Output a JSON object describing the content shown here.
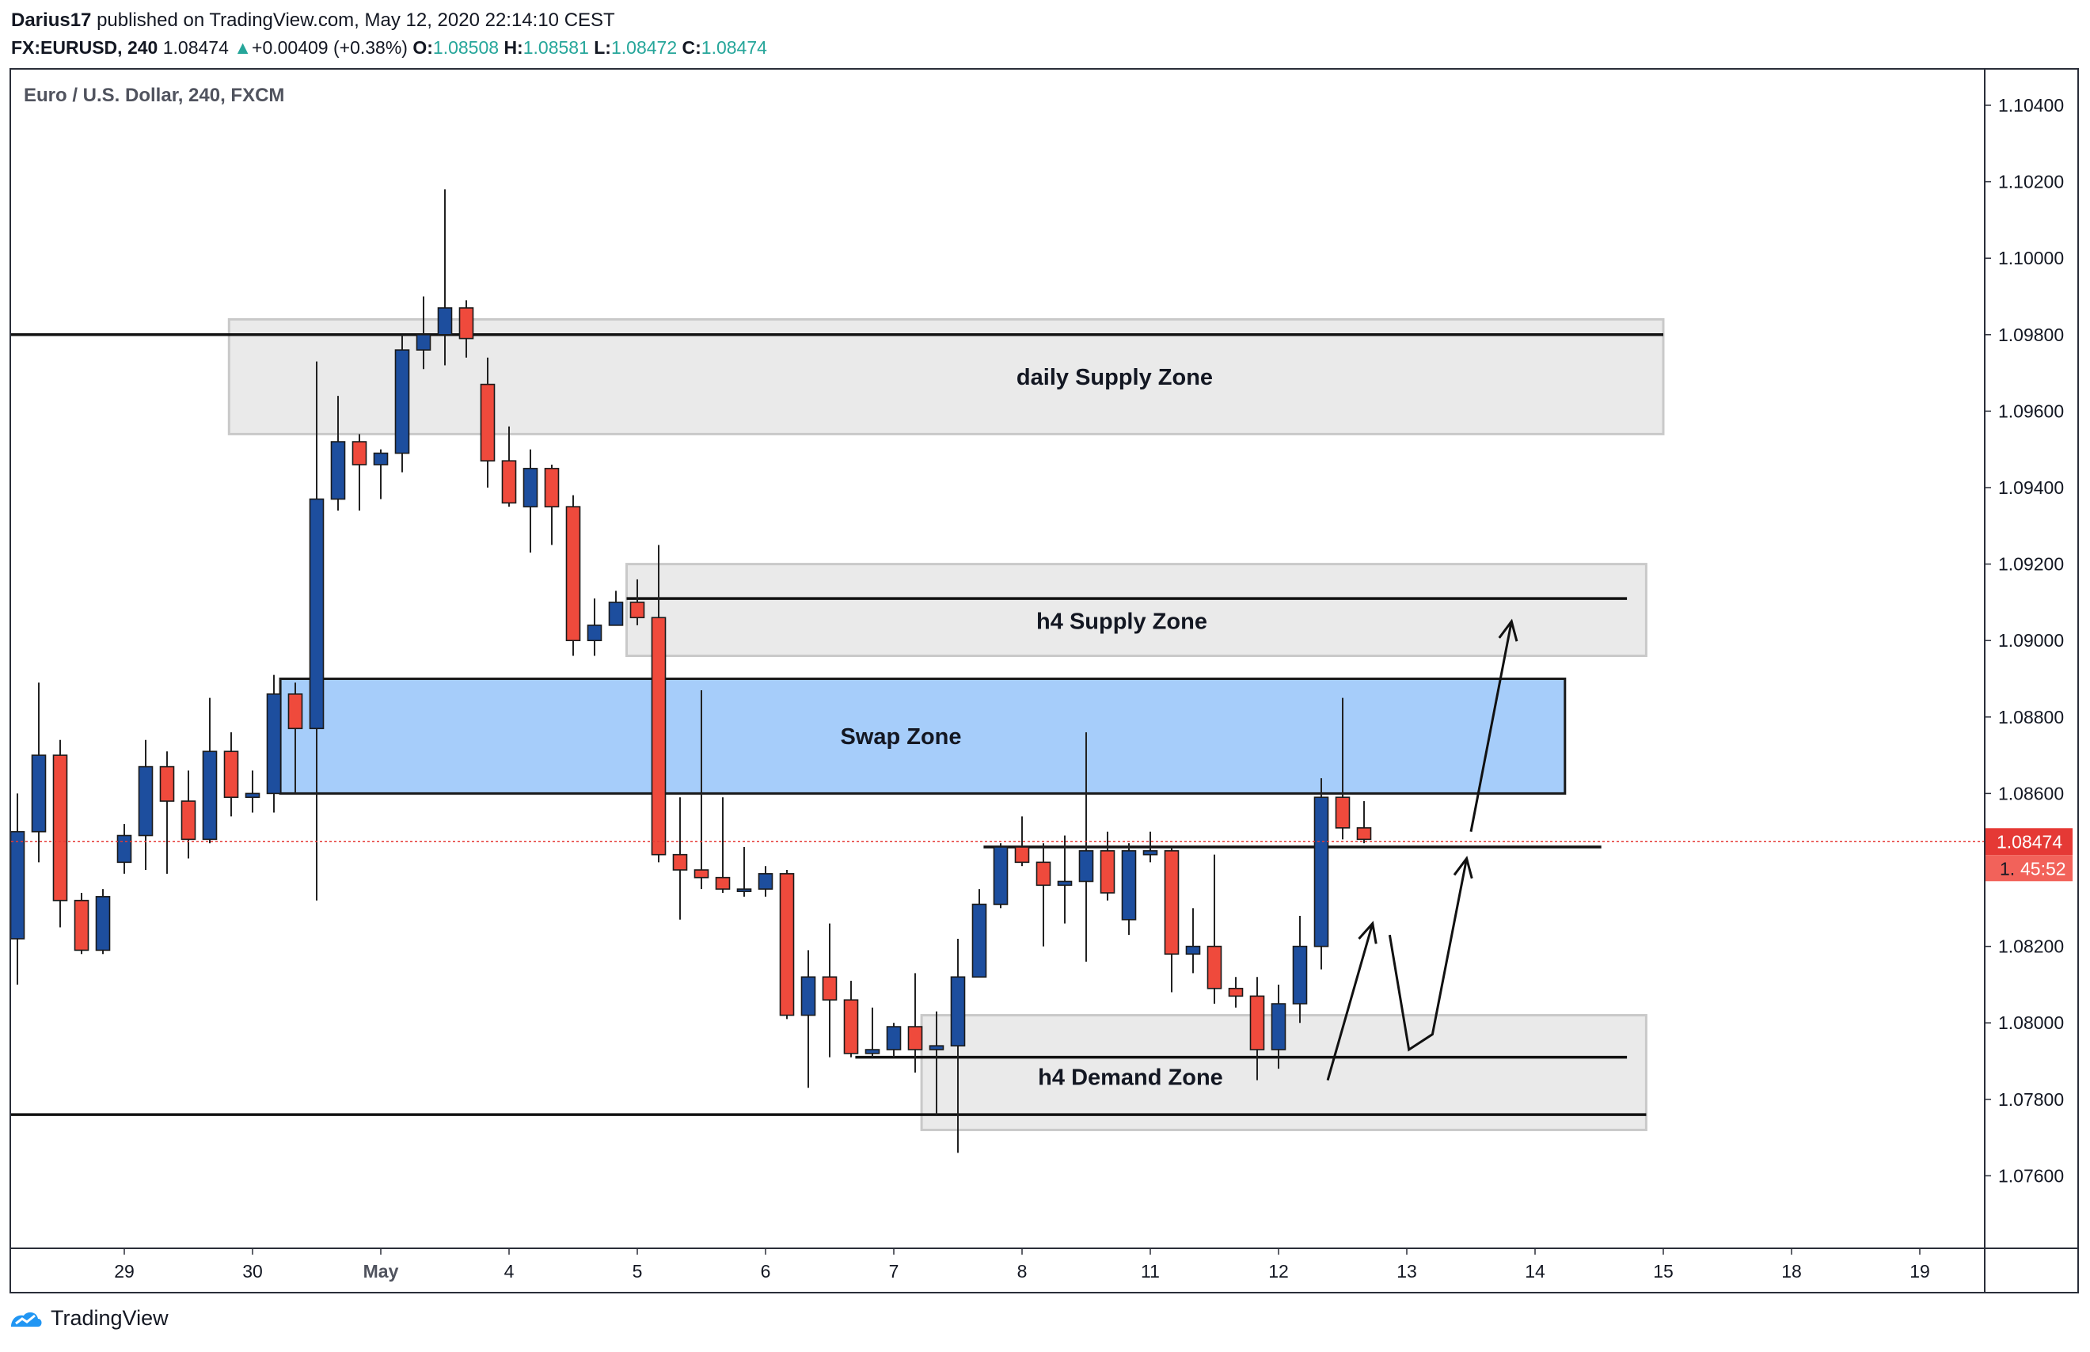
{
  "header": {
    "user": "Darius17",
    "published_text": "published on TradingView.com, May 12, 2020 22:14:10 CEST",
    "symbol": "FX:EURUSD, 240",
    "last": "1.08474",
    "change_arrow": "▲",
    "change": "+0.00409 (+0.38%)",
    "open_label": "O:",
    "open": "1.08508",
    "high_label": "H:",
    "high": "1.08581",
    "low_label": "L:",
    "low": "1.08472",
    "close_label": "C:",
    "close": "1.08474"
  },
  "footer": {
    "brand": "TradingView",
    "logo_icon": "tradingview-logo-icon"
  },
  "chart_data": {
    "type": "candlestick",
    "title": "Euro / U.S. Dollar, 240, FXCM",
    "ylim": [
      1.0745,
      1.105
    ],
    "y_ticks": [
      "1.10400",
      "1.10200",
      "1.10000",
      "1.09800",
      "1.09600",
      "1.09400",
      "1.09200",
      "1.09000",
      "1.08800",
      "1.08600",
      "1.08400",
      "1.08200",
      "1.08000",
      "1.07800",
      "1.07600"
    ],
    "x_ticks": [
      {
        "label": "29",
        "slot": 5
      },
      {
        "label": "30",
        "slot": 11
      },
      {
        "label": "May",
        "slot": 17
      },
      {
        "label": "4",
        "slot": 23
      },
      {
        "label": "5",
        "slot": 29
      },
      {
        "label": "6",
        "slot": 35
      },
      {
        "label": "7",
        "slot": 41
      },
      {
        "label": "8",
        "slot": 47
      },
      {
        "label": "11",
        "slot": 53
      },
      {
        "label": "12",
        "slot": 59
      },
      {
        "label": "13",
        "slot": 65
      },
      {
        "label": "14",
        "slot": 71
      },
      {
        "label": "15",
        "slot": 77
      },
      {
        "label": "18",
        "slot": 83
      },
      {
        "label": "19",
        "slot": 89
      }
    ],
    "current_price_label": "1.08474",
    "countdown_label": "45:52",
    "colors": {
      "up": "#1d4e9e",
      "down": "#ef4a3c",
      "wick": "#222222",
      "price_line": "#e53935",
      "zone": "#e9e9e9",
      "swap": "#a6cdfa"
    },
    "candles": [
      {
        "o": 1.0822,
        "h": 1.086,
        "l": 1.081,
        "c": 1.085
      },
      {
        "o": 1.085,
        "h": 1.0889,
        "l": 1.0842,
        "c": 1.087
      },
      {
        "o": 1.087,
        "h": 1.0874,
        "l": 1.0825,
        "c": 1.0832
      },
      {
        "o": 1.0832,
        "h": 1.0834,
        "l": 1.0818,
        "c": 1.0819
      },
      {
        "o": 1.0819,
        "h": 1.0835,
        "l": 1.0818,
        "c": 1.0833
      },
      {
        "o": 1.0842,
        "h": 1.0852,
        "l": 1.0839,
        "c": 1.0849
      },
      {
        "o": 1.0849,
        "h": 1.0874,
        "l": 1.084,
        "c": 1.0867
      },
      {
        "o": 1.0867,
        "h": 1.0871,
        "l": 1.0839,
        "c": 1.0858
      },
      {
        "o": 1.0858,
        "h": 1.0866,
        "l": 1.0843,
        "c": 1.0848
      },
      {
        "o": 1.0848,
        "h": 1.0885,
        "l": 1.0847,
        "c": 1.0871
      },
      {
        "o": 1.0871,
        "h": 1.0876,
        "l": 1.0854,
        "c": 1.0859
      },
      {
        "o": 1.0859,
        "h": 1.0866,
        "l": 1.0855,
        "c": 1.086
      },
      {
        "o": 1.086,
        "h": 1.0891,
        "l": 1.0855,
        "c": 1.0886
      },
      {
        "o": 1.0886,
        "h": 1.0889,
        "l": 1.086,
        "c": 1.0877
      },
      {
        "o": 1.0877,
        "h": 1.0973,
        "l": 1.0832,
        "c": 1.0937
      },
      {
        "o": 1.0937,
        "h": 1.0964,
        "l": 1.0934,
        "c": 1.0952
      },
      {
        "o": 1.0952,
        "h": 1.0954,
        "l": 1.0934,
        "c": 1.0946
      },
      {
        "o": 1.0946,
        "h": 1.095,
        "l": 1.0937,
        "c": 1.0949
      },
      {
        "o": 1.0949,
        "h": 1.098,
        "l": 1.0944,
        "c": 1.0976
      },
      {
        "o": 1.0976,
        "h": 1.099,
        "l": 1.0971,
        "c": 1.098
      },
      {
        "o": 1.098,
        "h": 1.1018,
        "l": 1.0972,
        "c": 1.0987
      },
      {
        "o": 1.0987,
        "h": 1.0989,
        "l": 1.0974,
        "c": 1.0979
      },
      {
        "o": 1.0967,
        "h": 1.0974,
        "l": 1.094,
        "c": 1.0947
      },
      {
        "o": 1.0947,
        "h": 1.0956,
        "l": 1.0935,
        "c": 1.0936
      },
      {
        "o": 1.0935,
        "h": 1.095,
        "l": 1.0923,
        "c": 1.0945
      },
      {
        "o": 1.0945,
        "h": 1.0946,
        "l": 1.0925,
        "c": 1.0935
      },
      {
        "o": 1.0935,
        "h": 1.0938,
        "l": 1.0896,
        "c": 1.09
      },
      {
        "o": 1.09,
        "h": 1.0911,
        "l": 1.0896,
        "c": 1.0904
      },
      {
        "o": 1.0904,
        "h": 1.0913,
        "l": 1.0904,
        "c": 1.091
      },
      {
        "o": 1.091,
        "h": 1.0916,
        "l": 1.0904,
        "c": 1.0906
      },
      {
        "o": 1.0906,
        "h": 1.0925,
        "l": 1.0842,
        "c": 1.0844
      },
      {
        "o": 1.0844,
        "h": 1.0859,
        "l": 1.0827,
        "c": 1.084
      },
      {
        "o": 1.084,
        "h": 1.0887,
        "l": 1.0835,
        "c": 1.0838
      },
      {
        "o": 1.0838,
        "h": 1.0859,
        "l": 1.0834,
        "c": 1.0835
      },
      {
        "o": 1.0835,
        "h": 1.0846,
        "l": 1.0833,
        "c": 1.0835
      },
      {
        "o": 1.0835,
        "h": 1.0841,
        "l": 1.0833,
        "c": 1.0839
      },
      {
        "o": 1.0839,
        "h": 1.084,
        "l": 1.0801,
        "c": 1.0802
      },
      {
        "o": 1.0802,
        "h": 1.0819,
        "l": 1.0783,
        "c": 1.0812
      },
      {
        "o": 1.0812,
        "h": 1.0826,
        "l": 1.0791,
        "c": 1.0806
      },
      {
        "o": 1.0806,
        "h": 1.0811,
        "l": 1.0791,
        "c": 1.0792
      },
      {
        "o": 1.0792,
        "h": 1.0804,
        "l": 1.0791,
        "c": 1.0793
      },
      {
        "o": 1.0793,
        "h": 1.08,
        "l": 1.0791,
        "c": 1.0799
      },
      {
        "o": 1.0799,
        "h": 1.0813,
        "l": 1.0787,
        "c": 1.0793
      },
      {
        "o": 1.0793,
        "h": 1.0803,
        "l": 1.0776,
        "c": 1.0794
      },
      {
        "o": 1.0794,
        "h": 1.0822,
        "l": 1.0766,
        "c": 1.0812
      },
      {
        "o": 1.0812,
        "h": 1.0835,
        "l": 1.0812,
        "c": 1.0831
      },
      {
        "o": 1.0831,
        "h": 1.0847,
        "l": 1.083,
        "c": 1.0846
      },
      {
        "o": 1.0846,
        "h": 1.0854,
        "l": 1.0841,
        "c": 1.0842
      },
      {
        "o": 1.0842,
        "h": 1.0847,
        "l": 1.082,
        "c": 1.0836
      },
      {
        "o": 1.0836,
        "h": 1.0849,
        "l": 1.0826,
        "c": 1.0837
      },
      {
        "o": 1.0837,
        "h": 1.0876,
        "l": 1.0816,
        "c": 1.0845
      },
      {
        "o": 1.0845,
        "h": 1.085,
        "l": 1.0832,
        "c": 1.0834
      },
      {
        "o": 1.0827,
        "h": 1.0847,
        "l": 1.0823,
        "c": 1.0845
      },
      {
        "o": 1.0844,
        "h": 1.085,
        "l": 1.0842,
        "c": 1.0845
      },
      {
        "o": 1.0845,
        "h": 1.0846,
        "l": 1.0808,
        "c": 1.0818
      },
      {
        "o": 1.0818,
        "h": 1.083,
        "l": 1.0813,
        "c": 1.082
      },
      {
        "o": 1.082,
        "h": 1.0844,
        "l": 1.0805,
        "c": 1.0809
      },
      {
        "o": 1.0809,
        "h": 1.0812,
        "l": 1.0804,
        "c": 1.0807
      },
      {
        "o": 1.0807,
        "h": 1.0812,
        "l": 1.0785,
        "c": 1.0793
      },
      {
        "o": 1.0793,
        "h": 1.081,
        "l": 1.0788,
        "c": 1.0805
      },
      {
        "o": 1.0805,
        "h": 1.0828,
        "l": 1.08,
        "c": 1.082
      },
      {
        "o": 1.082,
        "h": 1.0864,
        "l": 1.0814,
        "c": 1.0859
      },
      {
        "o": 1.0859,
        "h": 1.0885,
        "l": 1.0848,
        "c": 1.0851
      },
      {
        "o": 1.0851,
        "h": 1.0858,
        "l": 1.0847,
        "c": 1.0848
      }
    ],
    "zones": [
      {
        "label": "daily Supply Zone",
        "y_top": 1.0984,
        "y_bottom": 1.0954,
        "slot_start": 9.9,
        "slot_end": 77
      },
      {
        "label": "h4 Supply Zone",
        "y_top": 1.092,
        "y_bottom": 1.0896,
        "slot_start": 28.5,
        "slot_end": 76.2
      },
      {
        "label": "Swap Zone",
        "y_top": 1.089,
        "y_bottom": 1.086,
        "slot_start": 12.3,
        "slot_end": 72.4
      },
      {
        "label": "h4 Demand Zone",
        "y_top": 1.0802,
        "y_bottom": 1.0772,
        "slot_start": 42.3,
        "slot_end": 76.2
      }
    ],
    "levels": [
      {
        "y": 1.098,
        "slot_start": -0.5,
        "slot_end": 77
      },
      {
        "y": 1.0911,
        "slot_start": 28.5,
        "slot_end": 75.3
      },
      {
        "y": 1.0846,
        "slot_start": 45.2,
        "slot_end": 74.1
      },
      {
        "y": 1.0791,
        "slot_start": 39.2,
        "slot_end": 75.3
      },
      {
        "y": 1.0776,
        "slot_start": -0.5,
        "slot_end": 76.2
      }
    ],
    "arrows": [
      {
        "points": [
          [
            61.3,
            1.0785
          ],
          [
            63.4,
            1.0826
          ]
        ]
      },
      {
        "points": [
          [
            64.2,
            1.0823
          ],
          [
            65.1,
            1.0793
          ],
          [
            66.2,
            1.0797
          ],
          [
            67.8,
            1.0843
          ]
        ]
      },
      {
        "points": [
          [
            68.0,
            1.085
          ],
          [
            69.9,
            1.0905
          ]
        ]
      }
    ]
  }
}
